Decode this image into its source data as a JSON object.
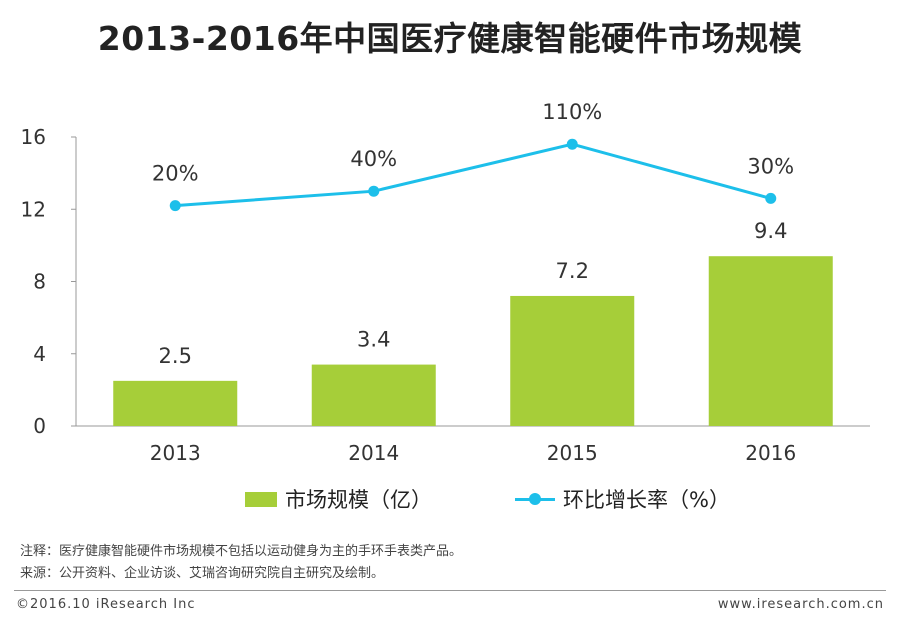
{
  "title": "2013-2016年中国医疗健康智能硬件市场规模",
  "chart_data": {
    "type": "bar+line",
    "categories": [
      "2013",
      "2014",
      "2015",
      "2016"
    ],
    "series": [
      {
        "name": "市场规模（亿）",
        "kind": "bar",
        "values": [
          2.5,
          3.4,
          7.2,
          9.4
        ],
        "labels": [
          "2.5",
          "3.4",
          "7.2",
          "9.4"
        ],
        "color": "#a6ce39"
      },
      {
        "name": "环比增长率（%）",
        "kind": "line",
        "values": [
          20,
          40,
          110,
          30
        ],
        "labels": [
          "20%",
          "40%",
          "110%",
          "30%"
        ],
        "plotted_on_left_axis_units": [
          12.2,
          13.0,
          15.6,
          12.6
        ],
        "color": "#1dbfea"
      }
    ],
    "yticks": [
      "0",
      "4",
      "8",
      "12",
      "16"
    ],
    "ylim": [
      0,
      16
    ]
  },
  "legend": {
    "bar_label": "市场规模（亿）",
    "line_label": "环比增长率（%）"
  },
  "notes": {
    "note": "注释：医疗健康智能硬件市场规模不包括以运动健身为主的手环手表类产品。",
    "source": "来源：公开资料、企业访谈、艾瑞咨询研究院自主研究及绘制。"
  },
  "footer": {
    "copyright": "©2016.10 iResearch Inc",
    "website": "www.iresearch.com.cn"
  }
}
